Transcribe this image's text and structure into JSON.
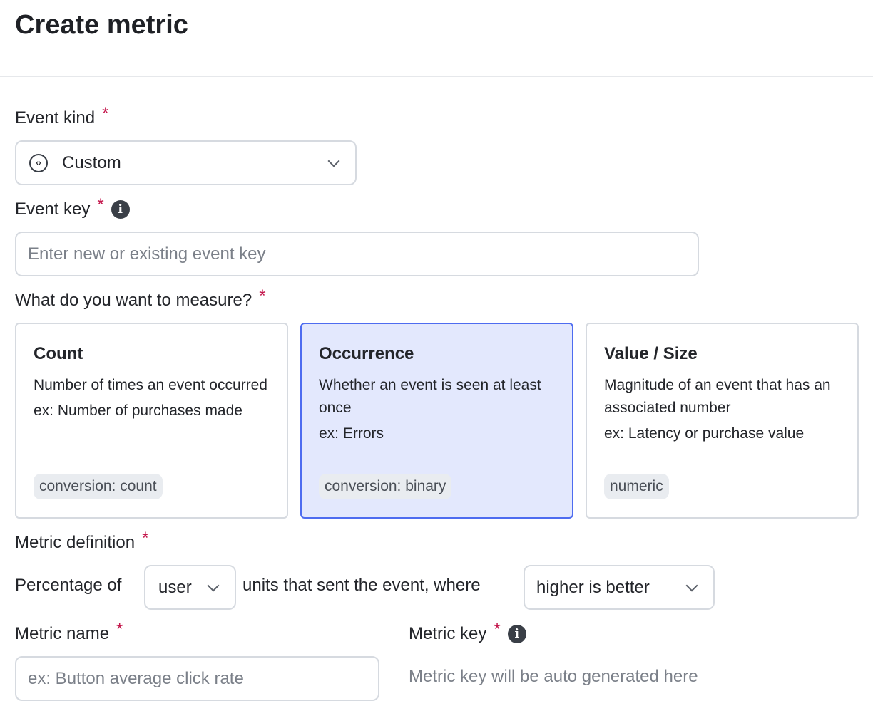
{
  "title": "Create metric",
  "event_kind": {
    "label": "Event kind",
    "required": "*",
    "value": "Custom",
    "icon": "code-circle-icon"
  },
  "event_key": {
    "label": "Event key",
    "required": "*",
    "placeholder": "Enter new or existing event key",
    "info_icon": "i"
  },
  "measure": {
    "label": "What do you want to measure?",
    "required": "*",
    "selected": "Occurrence",
    "accent": "#4e6cf0",
    "cards": [
      {
        "title": "Count",
        "description": "Number of times an event occurred",
        "example": "ex: Number of purchases made",
        "tag": "conversion: count"
      },
      {
        "title": "Occurrence",
        "description": "Whether an event is seen at least once",
        "example": "ex: Errors",
        "tag": "conversion: binary"
      },
      {
        "title": "Value / Size",
        "description": "Magnitude of an event that has an associated number",
        "example": "ex: Latency or purchase value",
        "tag": "numeric"
      }
    ]
  },
  "definition": {
    "label": "Metric definition",
    "required": "*",
    "prefix": "Percentage of",
    "unit": "user",
    "middle": "units that sent the event, where",
    "direction": "higher is better"
  },
  "metric_name": {
    "label": "Metric name",
    "required": "*",
    "placeholder": "ex: Button average click rate"
  },
  "metric_key": {
    "label": "Metric key",
    "required": "*",
    "info_icon": "i",
    "placeholder": "Metric key will be auto generated here"
  }
}
